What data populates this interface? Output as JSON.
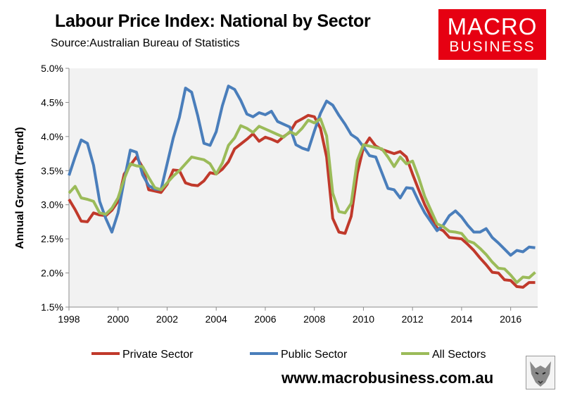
{
  "header": {
    "title": "Labour Price Index: National by Sector",
    "subtitle": "Source:Australian Bureau of Statistics"
  },
  "logo": {
    "line1": "MACRO",
    "line2": "BUSINESS"
  },
  "footer": {
    "url": "www.macrobusiness.com.au"
  },
  "colors": {
    "private": "#c0392b",
    "public": "#4a7ebb",
    "all": "#9bbb59",
    "plot_bg": "#f2f2f2",
    "brand": "#e60012"
  },
  "chart_data": {
    "type": "line",
    "title": "Labour Price Index: National by Sector",
    "subtitle": "Source:Australian Bureau of Statistics",
    "xlabel": "",
    "ylabel": "Annual Growth (Trend)",
    "xlim": [
      1998,
      2017.1
    ],
    "ylim": [
      1.5,
      5.0
    ],
    "xticks": [
      1998,
      2000,
      2002,
      2004,
      2006,
      2008,
      2010,
      2012,
      2014,
      2016
    ],
    "yticks": [
      1.5,
      2.0,
      2.5,
      3.0,
      3.5,
      4.0,
      4.5,
      5.0
    ],
    "ytick_labels": [
      "1.5%",
      "2.0%",
      "2.5%",
      "3.0%",
      "3.5%",
      "4.0%",
      "4.5%",
      "5.0%"
    ],
    "grid": false,
    "legend_position": "bottom",
    "series": [
      {
        "name": "Private Sector",
        "color": "#c0392b",
        "x": [
          1998.0,
          1998.25,
          1998.5,
          1998.75,
          1999.0,
          1999.25,
          1999.5,
          1999.75,
          2000.0,
          2000.25,
          2000.5,
          2000.75,
          2001.0,
          2001.25,
          2001.5,
          2001.75,
          2002.0,
          2002.25,
          2002.5,
          2002.75,
          2003.0,
          2003.25,
          2003.5,
          2003.75,
          2004.0,
          2004.25,
          2004.5,
          2004.75,
          2005.0,
          2005.25,
          2005.5,
          2005.75,
          2006.0,
          2006.25,
          2006.5,
          2006.75,
          2007.0,
          2007.25,
          2007.5,
          2007.75,
          2008.0,
          2008.25,
          2008.5,
          2008.75,
          2009.0,
          2009.25,
          2009.5,
          2009.75,
          2010.0,
          2010.25,
          2010.5,
          2010.75,
          2011.0,
          2011.25,
          2011.5,
          2011.75,
          2012.0,
          2012.25,
          2012.5,
          2012.75,
          2013.0,
          2013.25,
          2013.5,
          2013.75,
          2014.0,
          2014.25,
          2014.5,
          2014.75,
          2015.0,
          2015.25,
          2015.5,
          2015.75,
          2016.0,
          2016.25,
          2016.5,
          2016.75,
          2017.0
        ],
        "values": [
          3.08,
          2.93,
          2.76,
          2.75,
          2.88,
          2.85,
          2.84,
          2.92,
          3.05,
          3.45,
          3.58,
          3.7,
          3.55,
          3.22,
          3.2,
          3.18,
          3.3,
          3.51,
          3.5,
          3.32,
          3.29,
          3.28,
          3.35,
          3.47,
          3.45,
          3.52,
          3.63,
          3.82,
          3.89,
          3.96,
          4.04,
          3.93,
          3.99,
          3.96,
          3.92,
          4.0,
          4.06,
          4.21,
          4.26,
          4.31,
          4.29,
          4.12,
          3.7,
          2.8,
          2.6,
          2.58,
          2.83,
          3.46,
          3.84,
          3.98,
          3.86,
          3.81,
          3.78,
          3.75,
          3.78,
          3.7,
          3.45,
          3.22,
          3.0,
          2.82,
          2.66,
          2.62,
          2.52,
          2.51,
          2.5,
          2.42,
          2.33,
          2.22,
          2.12,
          2.01,
          2.0,
          1.9,
          1.89,
          1.8,
          1.79,
          1.86,
          1.86
        ]
      },
      {
        "name": "Public Sector",
        "color": "#4a7ebb",
        "x": [
          1998.0,
          1998.25,
          1998.5,
          1998.75,
          1999.0,
          1999.25,
          1999.5,
          1999.75,
          2000.0,
          2000.25,
          2000.5,
          2000.75,
          2001.0,
          2001.25,
          2001.5,
          2001.75,
          2002.0,
          2002.25,
          2002.5,
          2002.75,
          2003.0,
          2003.25,
          2003.5,
          2003.75,
          2004.0,
          2004.25,
          2004.5,
          2004.75,
          2005.0,
          2005.25,
          2005.5,
          2005.75,
          2006.0,
          2006.25,
          2006.5,
          2006.75,
          2007.0,
          2007.25,
          2007.5,
          2007.75,
          2008.0,
          2008.25,
          2008.5,
          2008.75,
          2009.0,
          2009.25,
          2009.5,
          2009.75,
          2010.0,
          2010.25,
          2010.5,
          2010.75,
          2011.0,
          2011.25,
          2011.5,
          2011.75,
          2012.0,
          2012.25,
          2012.5,
          2012.75,
          2013.0,
          2013.25,
          2013.5,
          2013.75,
          2014.0,
          2014.25,
          2014.5,
          2014.75,
          2015.0,
          2015.25,
          2015.5,
          2015.75,
          2016.0,
          2016.25,
          2016.5,
          2016.75,
          2017.0
        ],
        "values": [
          3.43,
          3.7,
          3.95,
          3.9,
          3.58,
          3.05,
          2.8,
          2.6,
          2.88,
          3.36,
          3.8,
          3.77,
          3.44,
          3.28,
          3.23,
          3.22,
          3.6,
          3.98,
          4.28,
          4.71,
          4.65,
          4.3,
          3.9,
          3.87,
          4.07,
          4.45,
          4.74,
          4.69,
          4.53,
          4.33,
          4.29,
          4.35,
          4.32,
          4.37,
          4.22,
          4.18,
          4.14,
          3.88,
          3.83,
          3.8,
          4.08,
          4.34,
          4.52,
          4.46,
          4.31,
          4.18,
          4.03,
          3.97,
          3.85,
          3.72,
          3.7,
          3.47,
          3.24,
          3.22,
          3.1,
          3.25,
          3.24,
          3.05,
          2.88,
          2.75,
          2.62,
          2.7,
          2.84,
          2.91,
          2.82,
          2.7,
          2.6,
          2.6,
          2.65,
          2.52,
          2.44,
          2.35,
          2.26,
          2.33,
          2.31,
          2.38,
          2.37
        ]
      },
      {
        "name": "All Sectors",
        "color": "#9bbb59",
        "x": [
          1998.0,
          1998.25,
          1998.5,
          1998.75,
          1999.0,
          1999.25,
          1999.5,
          1999.75,
          2000.0,
          2000.25,
          2000.5,
          2000.75,
          2001.0,
          2001.25,
          2001.5,
          2001.75,
          2002.0,
          2002.25,
          2002.5,
          2002.75,
          2003.0,
          2003.25,
          2003.5,
          2003.75,
          2004.0,
          2004.25,
          2004.5,
          2004.75,
          2005.0,
          2005.25,
          2005.5,
          2005.75,
          2006.0,
          2006.25,
          2006.5,
          2006.75,
          2007.0,
          2007.25,
          2007.5,
          2007.75,
          2008.0,
          2008.25,
          2008.5,
          2008.75,
          2009.0,
          2009.25,
          2009.5,
          2009.75,
          2010.0,
          2010.25,
          2010.5,
          2010.75,
          2011.0,
          2011.25,
          2011.5,
          2011.75,
          2012.0,
          2012.25,
          2012.5,
          2012.75,
          2013.0,
          2013.25,
          2013.5,
          2013.75,
          2014.0,
          2014.25,
          2014.5,
          2014.75,
          2015.0,
          2015.25,
          2015.5,
          2015.75,
          2016.0,
          2016.25,
          2016.5,
          2016.75,
          2017.0
        ],
        "values": [
          3.17,
          3.27,
          3.1,
          3.08,
          3.05,
          2.88,
          2.86,
          2.95,
          3.1,
          3.38,
          3.6,
          3.57,
          3.56,
          3.4,
          3.25,
          3.22,
          3.32,
          3.42,
          3.5,
          3.6,
          3.7,
          3.68,
          3.66,
          3.6,
          3.45,
          3.61,
          3.87,
          3.98,
          4.16,
          4.12,
          4.06,
          4.15,
          4.11,
          4.07,
          4.03,
          3.99,
          4.07,
          4.03,
          4.12,
          4.24,
          4.2,
          4.26,
          4.01,
          3.17,
          2.9,
          2.88,
          3.02,
          3.65,
          3.88,
          3.86,
          3.84,
          3.82,
          3.7,
          3.56,
          3.7,
          3.6,
          3.64,
          3.4,
          3.12,
          2.92,
          2.72,
          2.68,
          2.61,
          2.6,
          2.58,
          2.47,
          2.44,
          2.36,
          2.27,
          2.16,
          2.07,
          2.06,
          1.97,
          1.86,
          1.94,
          1.93,
          2.01
        ]
      }
    ]
  }
}
